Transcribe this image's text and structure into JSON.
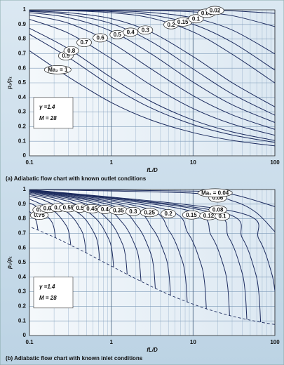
{
  "chart_data": [
    {
      "type": "line",
      "title": "(a) Adiabatic flow chart with known outlet conditions",
      "xlabel": "fL/D",
      "ylabel": "p₂/p₁",
      "annotations": [
        "γ =1.4",
        "M = 28"
      ],
      "xscale": "log",
      "grid": true,
      "color": "#1c2b5e",
      "xlim": [
        0.1,
        100
      ],
      "ylim": [
        0,
        1
      ],
      "xticks": [
        0.1,
        1,
        10,
        100
      ],
      "yticks": [
        0,
        0.1,
        0.2,
        0.3,
        0.4,
        0.5,
        0.6,
        0.7,
        0.8,
        0.9,
        1
      ],
      "xminorticks": [
        0.2,
        0.3,
        0.4,
        0.5,
        0.6,
        0.7,
        0.8,
        0.9,
        2,
        3,
        4,
        5,
        6,
        7,
        8,
        9,
        20,
        30,
        40,
        50,
        60,
        70,
        80,
        90
      ],
      "x": [
        0.1,
        0.3,
        1,
        3,
        10,
        30,
        100
      ],
      "series": [
        {
          "name": "Ma₂ = 1",
          "values": [
            0.72,
            0.54,
            0.365,
            0.247,
            0.159,
            0.106,
            0.068
          ]
        },
        {
          "name": "0.9",
          "values": [
            0.833,
            0.674,
            0.478,
            0.33,
            0.214,
            0.143,
            0.092
          ]
        },
        {
          "name": "0.8",
          "values": [
            0.874,
            0.733,
            0.536,
            0.375,
            0.245,
            0.164,
            0.105
          ]
        },
        {
          "name": "0.7",
          "values": [
            0.935,
            0.84,
            0.666,
            0.487,
            0.324,
            0.218,
            0.141
          ]
        },
        {
          "name": "0.6",
          "values": [
            0.965,
            0.908,
            0.774,
            0.599,
            0.412,
            0.281,
            0.181
          ]
        },
        {
          "name": "0.5",
          "values": [
            0.981,
            0.946,
            0.854,
            0.702,
            0.505,
            0.35,
            0.228
          ]
        },
        {
          "name": "0.4",
          "values": [
            0.989,
            0.968,
            0.906,
            0.786,
            0.595,
            0.424,
            0.278
          ]
        },
        {
          "name": "0.3",
          "values": [
            0.993,
            0.98,
            0.94,
            0.85,
            0.68,
            0.501,
            0.335
          ]
        },
        {
          "name": "0.2",
          "values": [
            0.998,
            0.994,
            0.98,
            0.945,
            0.849,
            0.696,
            0.499
          ]
        },
        {
          "name": "0.15",
          "values": [
            0.999,
            0.996,
            0.988,
            0.966,
            0.901,
            0.778,
            0.587
          ]
        },
        {
          "name": "0.1",
          "values": [
            0.999,
            0.998,
            0.994,
            0.982,
            0.945,
            0.862,
            0.698
          ]
        },
        {
          "name": "0.06",
          "values": [
            1,
            1,
            0.999,
            0.996,
            0.986,
            0.96,
            0.885
          ]
        },
        {
          "name": "0.02",
          "values": [
            1,
            1,
            1,
            0.999,
            0.998,
            0.993,
            0.976
          ]
        }
      ]
    },
    {
      "type": "line",
      "title": "(b) Adiabatic flow chart with known inlet conditions",
      "xlabel": "fL/D",
      "ylabel": "p₂/p₁",
      "annotations": [
        "γ =1.4",
        "M = 28"
      ],
      "xscale": "log",
      "grid": true,
      "color": "#1c2b5e",
      "xlim": [
        0.1,
        100
      ],
      "ylim": [
        0,
        1
      ],
      "xticks": [
        0.1,
        1,
        10,
        100
      ],
      "yticks": [
        0,
        0.1,
        0.2,
        0.3,
        0.4,
        0.5,
        0.6,
        0.7,
        0.8,
        0.9,
        1
      ],
      "xminorticks": [
        0.2,
        0.3,
        0.4,
        0.5,
        0.6,
        0.7,
        0.8,
        0.9,
        2,
        3,
        4,
        5,
        6,
        7,
        8,
        9,
        20,
        30,
        40,
        50,
        60,
        70,
        80,
        90
      ],
      "series": [
        {
          "name": "0.75",
          "x": [
            0.1,
            0.108,
            0.121,
            0.127
          ],
          "values": [
            0.85,
            0.83,
            0.784,
            0.722
          ]
        },
        {
          "name": "0.7",
          "x": [
            0.1,
            0.125,
            0.177,
            0.198,
            0.208
          ],
          "values": [
            0.908,
            0.879,
            0.798,
            0.744,
            0.67
          ]
        },
        {
          "name": "0.65",
          "x": [
            0.1,
            0.192,
            0.272,
            0.304,
            0.32
          ],
          "values": [
            0.935,
            0.859,
            0.766,
            0.704,
            0.618
          ]
        },
        {
          "name": "0.6",
          "x": [
            0.1,
            0.147,
            0.295,
            0.417,
            0.466,
            0.491
          ],
          "values": [
            0.953,
            0.929,
            0.841,
            0.735,
            0.664,
            0.567
          ]
        },
        {
          "name": "0.55",
          "x": [
            0.1,
            0.217,
            0.434,
            0.615,
            0.687,
            0.723
          ],
          "values": [
            0.965,
            0.921,
            0.822,
            0.704,
            0.625,
            0.517
          ]
        },
        {
          "name": "0.5",
          "x": [
            0.1,
            0.321,
            0.641,
            0.909,
            1.016,
            1.069
          ],
          "values": [
            0.974,
            0.913,
            0.804,
            0.674,
            0.587,
            0.468
          ]
        },
        {
          "name": "0.45",
          "x": [
            0.1,
            0.469,
            0.939,
            1.33,
            1.487,
            1.565
          ],
          "values": [
            0.981,
            0.905,
            0.786,
            0.644,
            0.549,
            0.419
          ]
        },
        {
          "name": "0.4",
          "x": [
            0.1,
            0.693,
            1.385,
            1.963,
            2.193,
            2.309
          ],
          "values": [
            0.986,
            0.897,
            0.769,
            0.614,
            0.512,
            0.371
          ]
        },
        {
          "name": "0.35",
          "x": [
            0.1,
            1.036,
            2.072,
            2.935,
            3.28,
            3.453
          ],
          "values": [
            0.99,
            0.89,
            0.751,
            0.585,
            0.475,
            0.323
          ]
        },
        {
          "name": "0.3",
          "x": [
            0.1,
            1.59,
            3.179,
            4.504,
            5.034,
            5.299
          ],
          "values": [
            0.993,
            0.882,
            0.734,
            0.556,
            0.438,
            0.276
          ]
        },
        {
          "name": "0.25",
          "x": [
            0.1,
            2.545,
            5.09,
            7.211,
            8.059,
            8.483
          ],
          "values": [
            0.995,
            0.874,
            0.717,
            0.528,
            0.402,
            0.23
          ]
        },
        {
          "name": "0.2",
          "x": [
            0.1,
            4.359,
            8.718,
            12.35,
            13.8,
            14.53
          ],
          "values": [
            0.997,
            0.867,
            0.699,
            0.499,
            0.366,
            0.183
          ]
        },
        {
          "name": "0.15",
          "x": [
            0.1,
            8.379,
            16.76,
            23.74,
            26.53,
            27.93
          ],
          "values": [
            0.998,
            0.859,
            0.682,
            0.471,
            0.33,
            0.137
          ]
        },
        {
          "name": "0.12",
          "x": [
            0.1,
            13.62,
            27.25,
            38.6,
            43.14,
            45.41
          ],
          "values": [
            0.999,
            0.855,
            0.672,
            0.454,
            0.309,
            0.11
          ]
        },
        {
          "name": "0.1",
          "x": [
            0.1,
            20.08,
            40.15,
            56.88,
            63.57,
            66.92
          ],
          "values": [
            0.999,
            0.851,
            0.666,
            0.443,
            0.295,
            0.0914
          ]
        },
        {
          "name": "0.08",
          "x": [
            0.1,
            32,
            64,
            90.7,
            100
          ],
          "values": [
            1,
            0.849,
            0.659,
            0.432,
            0.306
          ]
        },
        {
          "name": "0.06",
          "x": [
            0.1,
            10,
            30,
            57.9,
            100
          ],
          "values": [
            1,
            0.975,
            0.923,
            0.846,
            0.711
          ]
        },
        {
          "name": "Ma₁ = 0.04",
          "x": [
            0.1,
            10,
            30,
            100
          ],
          "values": [
            1,
            0.989,
            0.967,
            0.883
          ]
        },
        {
          "dash": true,
          "x": [
            0.0723,
            0.127,
            0.208,
            0.32,
            0.491,
            0.723,
            1.069,
            1.565,
            2.309,
            3.453,
            5.299,
            8.483,
            14.53,
            27.93,
            45.41,
            66.92,
            106.7
          ],
          "values": [
            0.776,
            0.722,
            0.67,
            0.618,
            0.567,
            0.517,
            0.468,
            0.419,
            0.371,
            0.323,
            0.276,
            0.23,
            0.183,
            0.137,
            0.11,
            0.0914,
            0.073
          ]
        }
      ]
    }
  ]
}
